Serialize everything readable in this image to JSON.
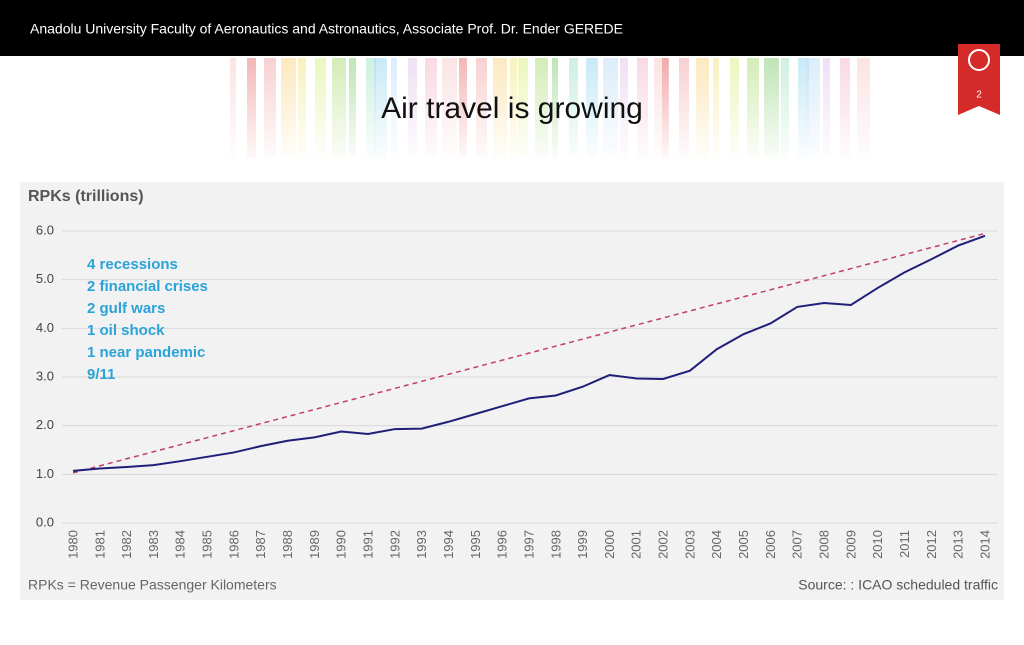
{
  "header": {
    "text": "Anadolu University Faculty of Aeronautics and Astronautics, Associate Prof. Dr. Ender GEREDE"
  },
  "slide_title": "Air travel is growing",
  "page_number": "2",
  "chart_data": {
    "type": "line",
    "ylabel": "RPKs (trillions)",
    "categories": [
      "1980",
      "1981",
      "1982",
      "1983",
      "1984",
      "1985",
      "1986",
      "1987",
      "1988",
      "1989",
      "1990",
      "1991",
      "1992",
      "1993",
      "1994",
      "1995",
      "1996",
      "1997",
      "1998",
      "1999",
      "2000",
      "2001",
      "2002",
      "2003",
      "2004",
      "2005",
      "2006",
      "2007",
      "2008",
      "2009",
      "2010",
      "2011",
      "2012",
      "2013",
      "2014"
    ],
    "series": [
      {
        "color": "#1f1f7a",
        "values": [
          1.07,
          1.12,
          1.15,
          1.19,
          1.27,
          1.36,
          1.45,
          1.58,
          1.69,
          1.76,
          1.88,
          1.83,
          1.93,
          1.94,
          2.08,
          2.24,
          2.4,
          2.56,
          2.62,
          2.8,
          3.04,
          2.97,
          2.96,
          3.13,
          3.57,
          3.88,
          4.1,
          4.44,
          4.52,
          4.48,
          4.83,
          5.15,
          5.42,
          5.7,
          5.9
        ]
      }
    ],
    "trendline": {
      "color": "#c0406a",
      "values": [
        1.03,
        5.95
      ]
    },
    "ylim": [
      0,
      6
    ],
    "yticks": [
      {
        "value": 0,
        "label": "0.0"
      },
      {
        "value": 1,
        "label": "1.0"
      },
      {
        "value": 2,
        "label": "2.0"
      },
      {
        "value": 3,
        "label": "3.0"
      },
      {
        "value": 4,
        "label": "4.0"
      },
      {
        "value": 5,
        "label": "5.0"
      },
      {
        "value": 6,
        "label": "6.0"
      }
    ],
    "grid": true,
    "annotations": [
      "4 recessions",
      "2 financial crises",
      "2 gulf wars",
      "1 oil shock",
      "1 near pandemic",
      "9/11"
    ],
    "footnote": "RPKs = Revenue Passenger Kilometers",
    "source": "Source: : ICAO scheduled traffic"
  }
}
